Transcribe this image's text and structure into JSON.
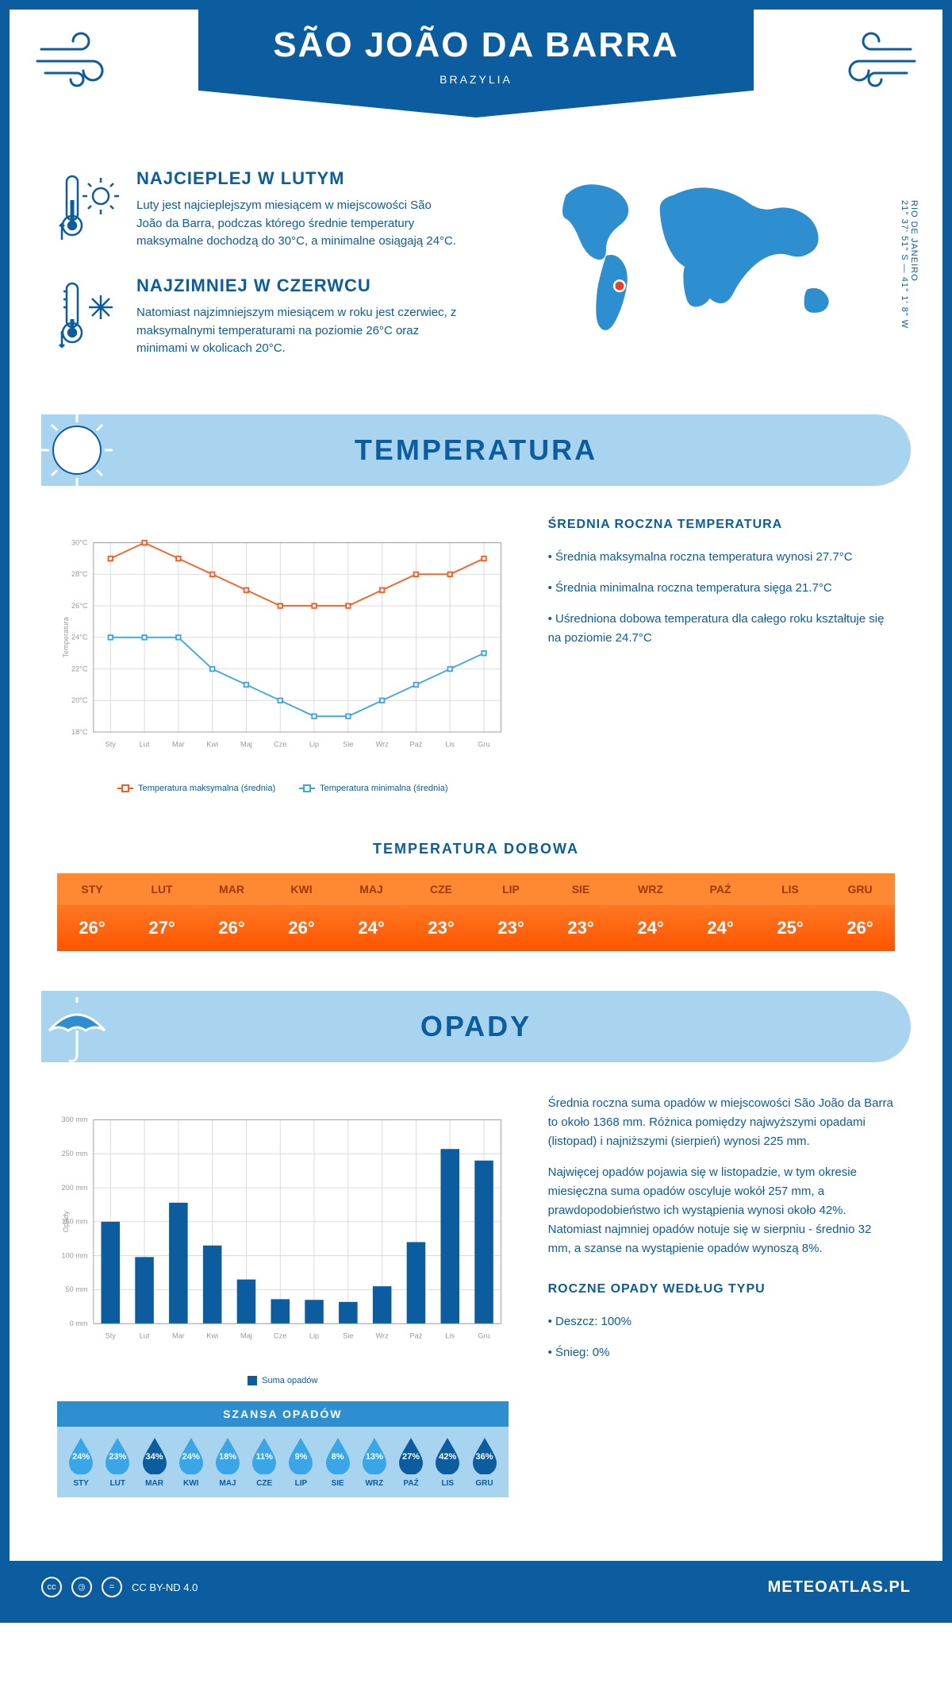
{
  "header": {
    "city": "SÃO JOÃO DA BARRA",
    "country": "BRAZYLIA"
  },
  "coords": {
    "line1": "21° 37' 51\" S — 41° 1' 8\" W",
    "line2": "RIO DE JANEIRO"
  },
  "intro": {
    "warm": {
      "title": "NAJCIEPLEJ W LUTYM",
      "text": "Luty jest najcieplejszym miesiącem w miejscowości São João da Barra, podczas którego średnie temperatury maksymalne dochodzą do 30°C, a minimalne osiągają 24°C."
    },
    "cold": {
      "title": "NAJZIMNIEJ W CZERWCU",
      "text": "Natomiast najzimniejszym miesiącem w roku jest czerwiec, z maksymalnymi temperaturami na poziomie 26°C oraz minimami w okolicach 20°C."
    }
  },
  "temperature": {
    "section_title": "TEMPERATURA",
    "chart": {
      "type": "line",
      "months": [
        "Sty",
        "Lut",
        "Mar",
        "Kwi",
        "Maj",
        "Cze",
        "Lip",
        "Sie",
        "Wrz",
        "Paź",
        "Lis",
        "Gru"
      ],
      "max_series": [
        29,
        30,
        29,
        28,
        27,
        26,
        26,
        26,
        27,
        28,
        28,
        29
      ],
      "min_series": [
        24,
        24,
        24,
        22,
        21,
        20,
        19,
        19,
        20,
        21,
        22,
        23
      ],
      "max_color": "#ff5a1f",
      "min_color": "#3aa6e8",
      "grid_color": "#d8d8d8",
      "y_min": 18,
      "y_max": 30,
      "y_step": 2,
      "y_label": "Temperatura",
      "legend_max": "Temperatura maksymalna (średnia)",
      "legend_min": "Temperatura minimalna (średnia)"
    },
    "info": {
      "title": "ŚREDNIA ROCZNA TEMPERATURA",
      "bullets": [
        "Średnia maksymalna roczna temperatura wynosi 27.7°C",
        "Średnia minimalna roczna temperatura sięga 21.7°C",
        "Uśredniona dobowa temperatura dla całego roku kształtuje się na poziomie 24.7°C"
      ]
    },
    "daily": {
      "title": "TEMPERATURA DOBOWA",
      "headers": [
        "STY",
        "LUT",
        "MAR",
        "KWI",
        "MAJ",
        "CZE",
        "LIP",
        "SIE",
        "WRZ",
        "PAŹ",
        "LIS",
        "GRU"
      ],
      "values": [
        "26°",
        "27°",
        "26°",
        "26°",
        "24°",
        "23°",
        "23°",
        "23°",
        "24°",
        "24°",
        "25°",
        "26°"
      ],
      "header_bg": "#ff8833",
      "header_fg": "#a03800",
      "cell_bg_top": "#ff7722",
      "cell_bg_bottom": "#ff5500"
    }
  },
  "precipitation": {
    "section_title": "OPADY",
    "chart": {
      "type": "bar",
      "months": [
        "Sty",
        "Lut",
        "Mar",
        "Kwi",
        "Maj",
        "Cze",
        "Lip",
        "Sie",
        "Wrz",
        "Paź",
        "Lis",
        "Gru"
      ],
      "values": [
        150,
        98,
        178,
        115,
        65,
        36,
        35,
        32,
        55,
        120,
        257,
        240
      ],
      "bar_color": "#0c5ca0",
      "grid_color": "#d8d8d8",
      "y_min": 0,
      "y_max": 300,
      "y_step": 50,
      "y_label": "Opady",
      "legend": "Suma opadów"
    },
    "info": {
      "p1": "Średnia roczna suma opadów w miejscowości São João da Barra to około 1368 mm. Różnica pomiędzy najwyższymi opadami (listopad) i najniższymi (sierpień) wynosi 225 mm.",
      "p2": "Najwięcej opadów pojawia się w listopadzie, w tym okresie miesięczna suma opadów oscyluje wokół 257 mm, a prawdopodobieństwo ich wystąpienia wynosi około 42%. Natomiast najmniej opadów notuje się w sierpniu - średnio 32 mm, a szanse na wystąpienie opadów wynoszą 8%."
    },
    "chance": {
      "title": "SZANSA OPADÓW",
      "months": [
        "STY",
        "LUT",
        "MAR",
        "KWI",
        "MAJ",
        "CZE",
        "LIP",
        "SIE",
        "WRZ",
        "PAŹ",
        "LIS",
        "GRU"
      ],
      "pct": [
        24,
        23,
        34,
        24,
        18,
        11,
        9,
        8,
        13,
        27,
        42,
        36
      ],
      "light_color": "#3aa6e8",
      "dark_color": "#0c5ca0",
      "dark_threshold": 26
    },
    "by_type": {
      "title": "ROCZNE OPADY WEDŁUG TYPU",
      "bullets": [
        "Deszcz: 100%",
        "Śnieg: 0%"
      ]
    }
  },
  "footer": {
    "license": "CC BY-ND 4.0",
    "site": "METEOATLAS.PL"
  },
  "colors": {
    "primary": "#0c5ca0",
    "light_blue": "#a8d4f0",
    "map_blue": "#2e8fd0",
    "marker_red": "#e8402a"
  }
}
